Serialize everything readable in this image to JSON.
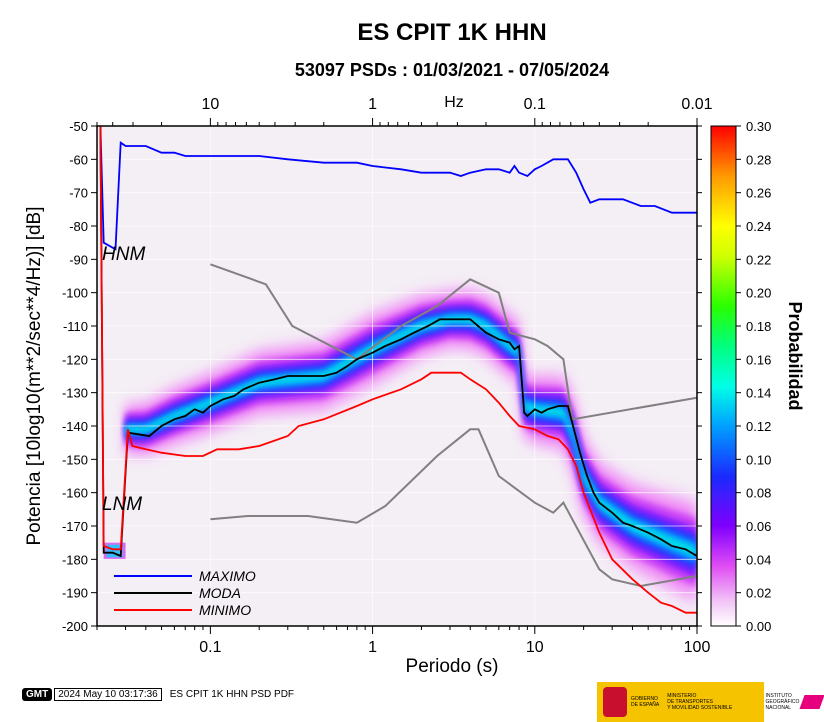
{
  "chart_data": {
    "type": "line",
    "title": "ES CPIT 1K HHN",
    "subtitle": "53097 PSDs : 01/03/2021 - 07/05/2024",
    "xlabel": "Periodo (s)",
    "ylabel": "Potencia [10log10(m**2/sec**4/Hz)] [dB]",
    "x_scale": "log",
    "xlim": [
      0.02,
      100
    ],
    "ylim": [
      -200,
      -50
    ],
    "x_ticks": [
      0.1,
      1,
      10,
      100
    ],
    "x_tick_labels": [
      "0.1",
      "1",
      "10",
      "100"
    ],
    "y_ticks": [
      -200,
      -190,
      -180,
      -170,
      -160,
      -150,
      -140,
      -130,
      -120,
      -110,
      -100,
      -90,
      -80,
      -70,
      -60,
      -50
    ],
    "top_axis": {
      "label": "Hz",
      "ticks": [
        10,
        1,
        0.1,
        0.01
      ],
      "tick_labels": [
        "10",
        "1",
        "0.1",
        "0.01"
      ]
    },
    "colorbar": {
      "label": "Probabilidad",
      "range": [
        0,
        0.3
      ],
      "ticks": [
        "0.00",
        "0.02",
        "0.04",
        "0.06",
        "0.08",
        "0.10",
        "0.12",
        "0.14",
        "0.16",
        "0.18",
        "0.20",
        "0.22",
        "0.24",
        "0.26",
        "0.28",
        "0.30"
      ]
    },
    "grid": true,
    "legend_placement": "bottom-left",
    "series": [
      {
        "name": "MAXIMO",
        "color": "#0000ff",
        "points": [
          [
            0.021,
            -50
          ],
          [
            0.022,
            -85
          ],
          [
            0.026,
            -87
          ],
          [
            0.028,
            -55
          ],
          [
            0.03,
            -56
          ],
          [
            0.04,
            -56
          ],
          [
            0.05,
            -58
          ],
          [
            0.06,
            -58
          ],
          [
            0.07,
            -59
          ],
          [
            0.2,
            -59
          ],
          [
            0.3,
            -60
          ],
          [
            0.5,
            -61
          ],
          [
            0.8,
            -61
          ],
          [
            1,
            -62
          ],
          [
            1.5,
            -63
          ],
          [
            2,
            -64
          ],
          [
            3,
            -64
          ],
          [
            3.5,
            -65
          ],
          [
            4,
            -64
          ],
          [
            5,
            -63
          ],
          [
            6,
            -63
          ],
          [
            7,
            -64
          ],
          [
            7.5,
            -62
          ],
          [
            8,
            -64
          ],
          [
            9,
            -65
          ],
          [
            10,
            -63
          ],
          [
            11,
            -62
          ],
          [
            13,
            -60
          ],
          [
            16,
            -60
          ],
          [
            18,
            -64
          ],
          [
            20,
            -69
          ],
          [
            22,
            -73
          ],
          [
            25,
            -72
          ],
          [
            35,
            -72
          ],
          [
            45,
            -74
          ],
          [
            55,
            -74
          ],
          [
            70,
            -76
          ],
          [
            100,
            -76
          ]
        ]
      },
      {
        "name": "MODA",
        "color": "#000000",
        "points": [
          [
            0.021,
            -50
          ],
          [
            0.022,
            -178
          ],
          [
            0.025,
            -178
          ],
          [
            0.028,
            -179
          ],
          [
            0.031,
            -142
          ],
          [
            0.036,
            -142.5
          ],
          [
            0.042,
            -143
          ],
          [
            0.05,
            -140
          ],
          [
            0.06,
            -138
          ],
          [
            0.07,
            -137
          ],
          [
            0.08,
            -135
          ],
          [
            0.09,
            -136
          ],
          [
            0.1,
            -134
          ],
          [
            0.12,
            -132
          ],
          [
            0.14,
            -131
          ],
          [
            0.16,
            -129
          ],
          [
            0.2,
            -127
          ],
          [
            0.25,
            -126
          ],
          [
            0.3,
            -125
          ],
          [
            0.4,
            -125
          ],
          [
            0.5,
            -125
          ],
          [
            0.6,
            -124
          ],
          [
            0.7,
            -122
          ],
          [
            0.8,
            -120
          ],
          [
            1,
            -118
          ],
          [
            1.2,
            -116
          ],
          [
            1.5,
            -114
          ],
          [
            1.8,
            -112
          ],
          [
            2.2,
            -110
          ],
          [
            2.6,
            -108
          ],
          [
            3,
            -108
          ],
          [
            4,
            -108
          ],
          [
            5,
            -112
          ],
          [
            6,
            -114
          ],
          [
            7,
            -115
          ],
          [
            7.5,
            -117
          ],
          [
            8,
            -116
          ],
          [
            8.6,
            -136
          ],
          [
            9,
            -137
          ],
          [
            10,
            -135
          ],
          [
            11,
            -136
          ],
          [
            12,
            -135
          ],
          [
            14,
            -134
          ],
          [
            16,
            -134
          ],
          [
            17,
            -139
          ],
          [
            19,
            -148
          ],
          [
            21,
            -155
          ],
          [
            23,
            -160
          ],
          [
            25,
            -163
          ],
          [
            30,
            -166
          ],
          [
            35,
            -169
          ],
          [
            40,
            -170
          ],
          [
            50,
            -172
          ],
          [
            60,
            -174
          ],
          [
            70,
            -176
          ],
          [
            85,
            -177
          ],
          [
            100,
            -179
          ]
        ]
      },
      {
        "name": "MINIMO",
        "color": "#ff0000",
        "points": [
          [
            0.021,
            -50
          ],
          [
            0.022,
            -176
          ],
          [
            0.025,
            -177
          ],
          [
            0.028,
            -177
          ],
          [
            0.031,
            -141
          ],
          [
            0.033,
            -146
          ],
          [
            0.04,
            -147
          ],
          [
            0.05,
            -148
          ],
          [
            0.07,
            -149
          ],
          [
            0.09,
            -149
          ],
          [
            0.11,
            -147
          ],
          [
            0.15,
            -147
          ],
          [
            0.2,
            -146
          ],
          [
            0.3,
            -143
          ],
          [
            0.35,
            -140
          ],
          [
            0.5,
            -138
          ],
          [
            0.8,
            -134
          ],
          [
            1,
            -132
          ],
          [
            1.5,
            -129
          ],
          [
            2,
            -126
          ],
          [
            2.3,
            -124
          ],
          [
            3,
            -124
          ],
          [
            3.5,
            -124
          ],
          [
            4,
            -126
          ],
          [
            5,
            -129
          ],
          [
            6,
            -133
          ],
          [
            7,
            -137
          ],
          [
            8,
            -140
          ],
          [
            10,
            -141
          ],
          [
            12,
            -143
          ],
          [
            14,
            -144
          ],
          [
            16,
            -147
          ],
          [
            18,
            -152
          ],
          [
            20,
            -160
          ],
          [
            25,
            -172
          ],
          [
            30,
            -180
          ],
          [
            40,
            -186
          ],
          [
            50,
            -190
          ],
          [
            60,
            -193
          ],
          [
            70,
            -194
          ],
          [
            85,
            -196
          ],
          [
            100,
            -196
          ]
        ]
      }
    ],
    "models": [
      {
        "name": "HNM",
        "color": "#808080",
        "points": [
          [
            0.1,
            -91.5
          ],
          [
            0.22,
            -97.5
          ],
          [
            0.32,
            -110
          ],
          [
            0.8,
            -120
          ],
          [
            1.5,
            -110
          ],
          [
            2.5,
            -104
          ],
          [
            4,
            -96
          ],
          [
            6,
            -100
          ],
          [
            7,
            -112
          ],
          [
            10,
            -114
          ],
          [
            12,
            -116
          ],
          [
            15,
            -120
          ],
          [
            17,
            -138
          ],
          [
            100,
            -131.5
          ]
        ]
      },
      {
        "name": "LNM",
        "color": "#808080",
        "points": [
          [
            0.1,
            -168
          ],
          [
            0.17,
            -167
          ],
          [
            0.4,
            -167
          ],
          [
            0.8,
            -169
          ],
          [
            1.2,
            -164
          ],
          [
            2.5,
            -149
          ],
          [
            4,
            -141
          ],
          [
            4.5,
            -141
          ],
          [
            6,
            -155
          ],
          [
            10,
            -163
          ],
          [
            13,
            -166
          ],
          [
            15,
            -163
          ],
          [
            25,
            -183
          ],
          [
            30,
            -186
          ],
          [
            45,
            -188
          ],
          [
            100,
            -185
          ]
        ]
      }
    ],
    "pdf_density": {
      "ridge": [
        [
          0.03,
          -141
        ],
        [
          0.04,
          -141
        ],
        [
          0.06,
          -137
        ],
        [
          0.1,
          -133
        ],
        [
          0.2,
          -127
        ],
        [
          0.5,
          -125
        ],
        [
          1,
          -117
        ],
        [
          2,
          -110
        ],
        [
          3,
          -108
        ],
        [
          4,
          -108
        ],
        [
          5,
          -110
        ],
        [
          7,
          -116
        ],
        [
          8,
          -118
        ],
        [
          8.6,
          -134
        ],
        [
          10,
          -135
        ],
        [
          15,
          -136
        ],
        [
          17,
          -142
        ],
        [
          20,
          -155
        ],
        [
          25,
          -163
        ],
        [
          40,
          -170
        ],
        [
          70,
          -175
        ],
        [
          100,
          -178
        ]
      ],
      "halfwidth": [
        [
          0.03,
          7
        ],
        [
          0.06,
          8
        ],
        [
          0.2,
          9
        ],
        [
          1,
          10
        ],
        [
          3,
          8
        ],
        [
          6,
          9
        ],
        [
          8,
          9
        ],
        [
          12,
          10
        ],
        [
          20,
          11
        ],
        [
          40,
          12
        ],
        [
          100,
          14
        ]
      ],
      "min_cluster": {
        "x": [
          0.022,
          0.03
        ],
        "y": [
          -180,
          -175
        ]
      }
    }
  }
}
